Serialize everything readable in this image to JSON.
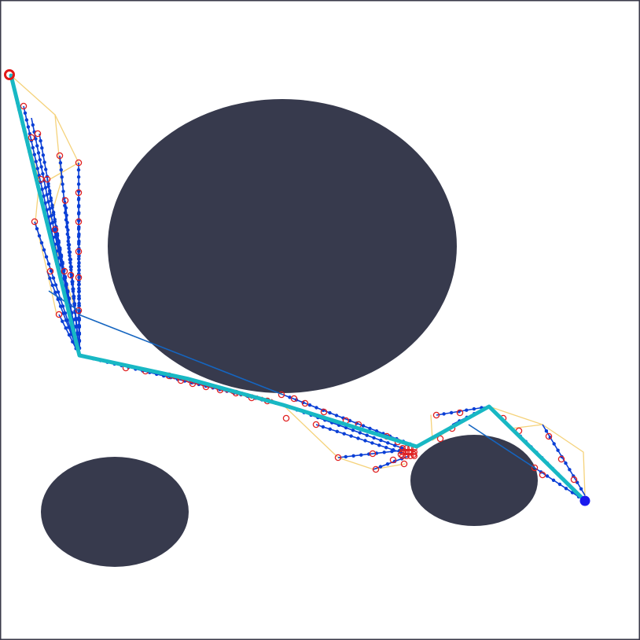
{
  "scene": {
    "background_color": "#ffffff",
    "border_color": "#3a3a4a",
    "obstacle_color": "#373a4d",
    "start_marker_color": "#e01818",
    "goal_marker_color": "#1a1aee",
    "tree_edge_color": "#0a3fd6",
    "tree_node_color": "#0a3fd6",
    "node_ring_color": "#e02020",
    "alt_path_color": "#f5d27a",
    "connector_color": "#1565c0",
    "best_path_color": "#18b8c4",
    "icons": {
      "start": "start-circle-icon",
      "goal": "goal-circle-icon"
    }
  }
}
